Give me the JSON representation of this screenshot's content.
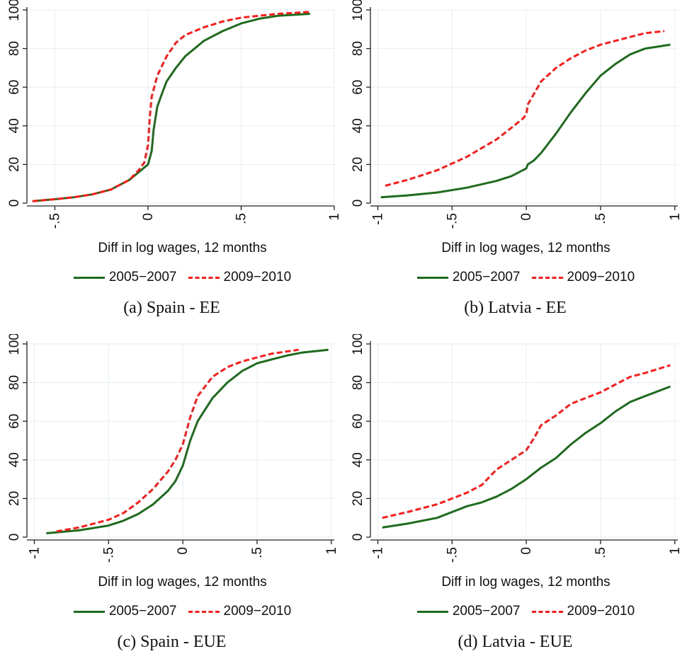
{
  "legend": {
    "series1": "2005−2007",
    "series2": "2009−2010"
  },
  "colors": {
    "series1": "#1e6b1e",
    "series2": "#ff1a1a",
    "grid": "#e6eef0",
    "axis": "#222222"
  },
  "chart_data": [
    {
      "type": "line",
      "caption": "(a) Spain - EE",
      "xlabel": "Diff in log wages, 12 months",
      "xlim": [
        -0.65,
        1.0
      ],
      "ylim": [
        0,
        100
      ],
      "xticks": [
        -0.5,
        0,
        0.5,
        1
      ],
      "xticklabels": [
        "-.5",
        "0",
        ".5",
        "1"
      ],
      "yticks": [
        0,
        20,
        40,
        60,
        80,
        100
      ],
      "yticklabels": [
        "0",
        "20",
        "40",
        "60",
        "80",
        "100"
      ],
      "series": [
        {
          "name": "2005−2007",
          "x": [
            -0.62,
            -0.5,
            -0.4,
            -0.3,
            -0.2,
            -0.1,
            -0.05,
            0,
            0.02,
            0.03,
            0.05,
            0.08,
            0.1,
            0.15,
            0.2,
            0.3,
            0.4,
            0.5,
            0.6,
            0.7,
            0.87
          ],
          "y": [
            1,
            2,
            3,
            4.5,
            7,
            12,
            16,
            20,
            27,
            38,
            50,
            58,
            63,
            70,
            76,
            84,
            89,
            93,
            95.5,
            97,
            98
          ]
        },
        {
          "name": "2009−2010",
          "x": [
            -0.62,
            -0.5,
            -0.4,
            -0.3,
            -0.2,
            -0.1,
            -0.05,
            -0.02,
            0,
            0.01,
            0.02,
            0.05,
            0.1,
            0.15,
            0.2,
            0.3,
            0.4,
            0.5,
            0.6,
            0.7,
            0.87
          ],
          "y": [
            1,
            2,
            3,
            4.5,
            7,
            12,
            17,
            21,
            30,
            45,
            55,
            66,
            76,
            83,
            87,
            91,
            94,
            96,
            97,
            98,
            99
          ]
        }
      ]
    },
    {
      "type": "line",
      "caption": "(b) Latvia - EE",
      "xlabel": "Diff in log wages, 12 months",
      "xlim": [
        -1.05,
        1.02
      ],
      "ylim": [
        0,
        100
      ],
      "xticks": [
        -1,
        -0.5,
        0,
        0.5,
        1
      ],
      "xticklabels": [
        "-1",
        "-.5",
        "0",
        ".5",
        "1"
      ],
      "yticks": [
        0,
        20,
        40,
        60,
        80,
        100
      ],
      "yticklabels": [
        "0",
        "20",
        "40",
        "60",
        "80",
        "100"
      ],
      "series": [
        {
          "name": "2005−2007",
          "x": [
            -0.98,
            -0.8,
            -0.6,
            -0.4,
            -0.2,
            -0.1,
            0,
            0.01,
            0.05,
            0.1,
            0.2,
            0.3,
            0.4,
            0.5,
            0.6,
            0.7,
            0.8,
            0.97
          ],
          "y": [
            3,
            4,
            5.5,
            8,
            11.5,
            14,
            18,
            20,
            22,
            26,
            36,
            47,
            57,
            66,
            72,
            77,
            80,
            82
          ]
        },
        {
          "name": "2009−2010",
          "x": [
            -0.95,
            -0.8,
            -0.6,
            -0.4,
            -0.2,
            -0.1,
            -0.02,
            0,
            0.01,
            0.1,
            0.2,
            0.3,
            0.4,
            0.5,
            0.6,
            0.7,
            0.8,
            0.93
          ],
          "y": [
            9,
            12,
            17,
            24,
            33,
            39,
            44,
            46,
            51,
            63,
            70,
            75,
            79,
            82,
            84,
            86,
            88,
            89
          ]
        }
      ]
    },
    {
      "type": "line",
      "caption": "(c) Spain - EUE",
      "xlabel": "Diff in log wages, 12 months",
      "xlim": [
        -1.05,
        1.02
      ],
      "ylim": [
        0,
        100
      ],
      "xticks": [
        -1,
        -0.5,
        0,
        0.5,
        1
      ],
      "xticklabels": [
        "-1",
        "-.5",
        "0",
        ".5",
        "1"
      ],
      "yticks": [
        0,
        20,
        40,
        60,
        80,
        100
      ],
      "yticklabels": [
        "0",
        "20",
        "40",
        "60",
        "80",
        "100"
      ],
      "series": [
        {
          "name": "2005−2007",
          "x": [
            -0.92,
            -0.7,
            -0.5,
            -0.4,
            -0.3,
            -0.2,
            -0.1,
            -0.05,
            0,
            0.05,
            0.1,
            0.2,
            0.3,
            0.4,
            0.5,
            0.6,
            0.7,
            0.8,
            0.98
          ],
          "y": [
            2,
            3.5,
            6,
            8.5,
            12,
            17,
            24,
            29,
            37,
            50,
            60,
            72,
            80,
            86,
            90,
            92,
            94,
            95.5,
            97
          ]
        },
        {
          "name": "2009−2010",
          "x": [
            -0.85,
            -0.7,
            -0.5,
            -0.4,
            -0.3,
            -0.2,
            -0.1,
            -0.05,
            0,
            0.05,
            0.1,
            0.2,
            0.3,
            0.4,
            0.5,
            0.6,
            0.78
          ],
          "y": [
            3,
            5,
            9,
            12.5,
            18,
            25,
            34,
            40,
            48,
            62,
            73,
            83,
            88,
            91,
            93,
            95,
            97
          ]
        }
      ]
    },
    {
      "type": "line",
      "caption": "(d) Latvia - EUE",
      "xlabel": "Diff in log wages, 12 months",
      "xlim": [
        -1.05,
        1.02
      ],
      "ylim": [
        0,
        100
      ],
      "xticks": [
        -1,
        -0.5,
        0,
        0.5,
        1
      ],
      "xticklabels": [
        "-1",
        "-.5",
        "0",
        ".5",
        "1"
      ],
      "yticks": [
        0,
        20,
        40,
        60,
        80,
        100
      ],
      "yticklabels": [
        "0",
        "20",
        "40",
        "60",
        "80",
        "100"
      ],
      "series": [
        {
          "name": "2005−2007",
          "x": [
            -0.97,
            -0.8,
            -0.6,
            -0.5,
            -0.4,
            -0.3,
            -0.2,
            -0.1,
            0,
            0.1,
            0.2,
            0.3,
            0.4,
            0.5,
            0.6,
            0.7,
            0.8,
            0.97
          ],
          "y": [
            5,
            7,
            10,
            13,
            16,
            18,
            21,
            25,
            30,
            36,
            41,
            48,
            54,
            59,
            65,
            70,
            73,
            78
          ]
        },
        {
          "name": "2009−2010",
          "x": [
            -0.97,
            -0.8,
            -0.6,
            -0.5,
            -0.4,
            -0.3,
            -0.2,
            -0.1,
            0,
            0.05,
            0.1,
            0.2,
            0.3,
            0.4,
            0.5,
            0.6,
            0.7,
            0.8,
            0.97
          ],
          "y": [
            10,
            13,
            17,
            20,
            23,
            27,
            35,
            40,
            45,
            51,
            58,
            63,
            69,
            72,
            75,
            79,
            83,
            85,
            89
          ]
        }
      ]
    }
  ]
}
